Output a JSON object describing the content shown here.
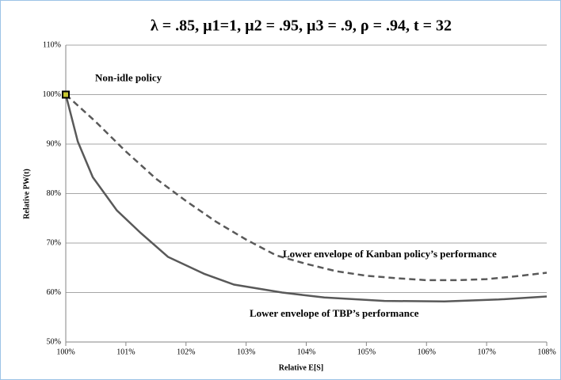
{
  "chart_data": {
    "type": "line",
    "title": "λ = .85, µ1=1, µ2 = .95, µ3 = .9, ρ = .94, t = 32",
    "x_label": "Relative E[S]",
    "y_label": "Relative PW(t)",
    "xlim": [
      100,
      108
    ],
    "ylim": [
      50,
      110
    ],
    "xticks": [
      {
        "value": 100,
        "label": "100%"
      },
      {
        "value": 101,
        "label": "101%"
      },
      {
        "value": 102,
        "label": "102%"
      },
      {
        "value": 103,
        "label": "103%"
      },
      {
        "value": 104,
        "label": "104%"
      },
      {
        "value": 105,
        "label": "105%"
      },
      {
        "value": 106,
        "label": "106%"
      },
      {
        "value": 107,
        "label": "107%"
      },
      {
        "value": 108,
        "label": "108%"
      }
    ],
    "yticks": [
      {
        "value": 50,
        "label": "50%"
      },
      {
        "value": 60,
        "label": "60%"
      },
      {
        "value": 70,
        "label": "70%"
      },
      {
        "value": 80,
        "label": "80%"
      },
      {
        "value": 90,
        "label": "90%"
      },
      {
        "value": 100,
        "label": "100%"
      },
      {
        "value": 110,
        "label": "110%"
      }
    ],
    "grid": true,
    "series": [
      {
        "name": "Lower envelope of Kanban policy’s performance",
        "color": "#595959",
        "dashed": true,
        "x": [
          100,
          100.5,
          101,
          101.5,
          102,
          102.5,
          103,
          103.5,
          104,
          104.5,
          105,
          105.5,
          106,
          106.5,
          107,
          107.5,
          108
        ],
        "values": [
          100,
          94.5,
          88.5,
          83,
          78.5,
          74.3,
          70.7,
          67.5,
          65.8,
          64.3,
          63.4,
          62.9,
          62.5,
          62.5,
          62.7,
          63.3,
          64
        ]
      },
      {
        "name": "Lower envelope of TBP’s performance",
        "color": "#595959",
        "dashed": false,
        "x": [
          100,
          100.2,
          100.45,
          100.85,
          101.25,
          101.7,
          102.3,
          102.8,
          103.6,
          104.3,
          105.3,
          106.3,
          107.2,
          108
        ],
        "values": [
          100,
          90.5,
          83.3,
          76.6,
          72,
          67.2,
          63.8,
          61.6,
          60,
          59,
          58.3,
          58.2,
          58.6,
          59.2
        ]
      }
    ],
    "highlight": {
      "label": "Non-idle policy",
      "x": 100,
      "y": 100,
      "color": "#c8c832"
    }
  }
}
